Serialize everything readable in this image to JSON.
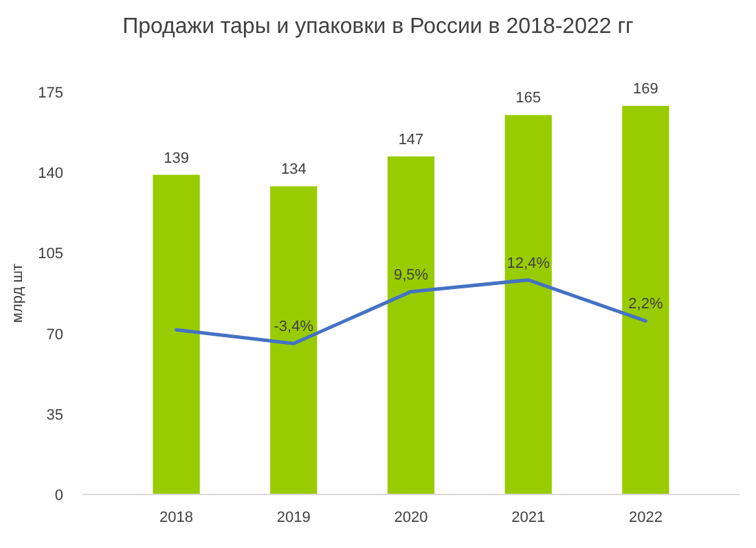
{
  "chart_data": {
    "type": "bar",
    "title": "Продажи тары и упаковки в России в 2018-2022 гг",
    "ylabel": "млрд шт",
    "categories": [
      "2018",
      "2019",
      "2020",
      "2021",
      "2022"
    ],
    "ylim": [
      0,
      175
    ],
    "yticks": [
      0,
      35,
      70,
      105,
      140,
      175
    ],
    "tick_labels": "xy",
    "series": [
      {
        "color": "#99cc00",
        "values": [
          139,
          134,
          147,
          165,
          169
        ],
        "data_labels": true
      },
      {
        "type": "line",
        "axis": "y2",
        "color": "#4472c4",
        "values": [
          0,
          -3.4,
          9.5,
          12.4,
          2.2
        ],
        "value_labels": [
          null,
          "-3,4%",
          "9,5%",
          "12,4%",
          "2,2%"
        ]
      }
    ]
  }
}
